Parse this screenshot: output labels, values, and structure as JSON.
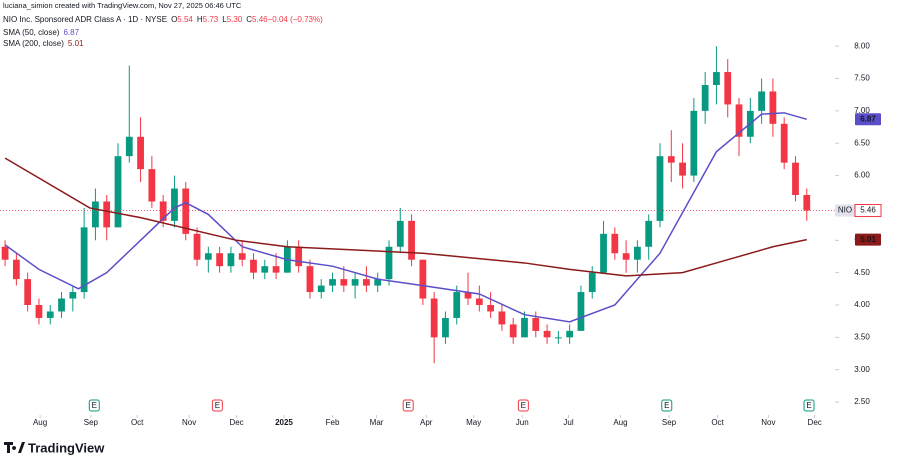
{
  "header": {
    "credit": "luciana_simion created with TradingView.com, Nov 27, 2025 06:46 UTC",
    "symbol": "NIO Inc. Sponsored ADR Class A · 1D · NYSE",
    "ohlc": [
      {
        "key": "O",
        "text": "5.54"
      },
      {
        "key": "H",
        "text": "5.73"
      },
      {
        "key": "L",
        "text": "5.30"
      },
      {
        "key": "C",
        "text": "5.46"
      },
      {
        "key": "",
        "text": "−0.04 (−0.73%)"
      }
    ],
    "ticker": "NIO"
  },
  "footer": {
    "brand": "TradingView"
  },
  "chart_data": {
    "type": "candlestick",
    "up_color": "#089981",
    "down_color": "#f23645",
    "open": [
      4.9,
      4.7,
      4.4,
      4.0,
      3.8,
      3.9,
      4.1,
      4.2,
      5.2,
      5.6,
      5.2,
      6.3,
      6.6,
      6.1,
      5.6,
      5.3,
      5.8,
      5.1,
      4.7,
      4.8,
      4.6,
      4.8,
      4.7,
      4.5,
      4.6,
      4.5,
      4.9,
      4.6,
      4.2,
      4.3,
      4.4,
      4.3,
      4.4,
      4.3,
      4.4,
      4.9,
      5.3,
      4.7,
      4.1,
      3.5,
      3.8,
      4.2,
      4.1,
      4.0,
      3.9,
      3.7,
      3.5,
      3.8,
      3.6,
      3.5,
      3.5,
      3.6,
      4.2,
      4.5,
      5.1,
      4.8,
      4.7,
      4.9,
      5.3,
      6.3,
      6.2,
      6.0,
      7.0,
      7.4,
      7.6,
      7.1,
      6.6,
      7.0,
      7.3,
      6.8,
      6.2,
      5.7
    ],
    "high": [
      5.0,
      4.8,
      4.5,
      4.1,
      4.0,
      4.2,
      4.3,
      5.5,
      5.8,
      5.7,
      6.5,
      7.7,
      6.9,
      6.3,
      5.7,
      6.0,
      5.9,
      5.2,
      4.9,
      4.9,
      4.9,
      5.0,
      4.8,
      4.7,
      4.8,
      5.0,
      5.0,
      4.7,
      4.4,
      4.5,
      4.6,
      4.5,
      4.6,
      4.5,
      5.0,
      5.5,
      5.4,
      4.7,
      4.2,
      3.9,
      4.3,
      4.5,
      4.3,
      4.2,
      4.0,
      3.8,
      3.9,
      3.9,
      3.7,
      3.6,
      3.7,
      4.3,
      4.6,
      5.3,
      5.2,
      5.0,
      5.0,
      5.4,
      6.5,
      6.7,
      6.5,
      7.2,
      7.6,
      8.0,
      7.8,
      7.2,
      7.2,
      7.5,
      7.5,
      6.9,
      6.3,
      5.8
    ],
    "low": [
      4.6,
      4.3,
      3.9,
      3.7,
      3.7,
      3.8,
      3.9,
      4.1,
      5.0,
      5.0,
      5.2,
      6.2,
      5.9,
      5.5,
      5.2,
      5.2,
      5.0,
      4.6,
      4.5,
      4.5,
      4.5,
      4.6,
      4.4,
      4.4,
      4.4,
      4.5,
      4.5,
      4.1,
      4.1,
      4.2,
      4.2,
      4.1,
      4.2,
      4.2,
      4.3,
      4.8,
      4.6,
      4.0,
      3.1,
      3.4,
      3.7,
      4.0,
      3.9,
      3.8,
      3.6,
      3.4,
      3.5,
      3.5,
      3.4,
      3.4,
      3.4,
      3.6,
      4.1,
      4.5,
      4.7,
      4.5,
      4.5,
      4.7,
      5.2,
      5.9,
      5.8,
      5.9,
      6.8,
      7.1,
      6.9,
      6.3,
      6.5,
      6.8,
      6.6,
      6.1,
      5.6,
      5.3
    ],
    "close": [
      4.7,
      4.4,
      4.0,
      3.8,
      3.9,
      4.1,
      4.2,
      5.2,
      5.6,
      5.2,
      6.3,
      6.6,
      6.1,
      5.6,
      5.3,
      5.8,
      5.1,
      4.7,
      4.8,
      4.6,
      4.8,
      4.7,
      4.5,
      4.6,
      4.5,
      4.9,
      4.6,
      4.2,
      4.3,
      4.4,
      4.3,
      4.4,
      4.3,
      4.4,
      4.9,
      5.3,
      4.7,
      4.1,
      3.5,
      3.8,
      4.2,
      4.1,
      4.0,
      3.9,
      3.7,
      3.5,
      3.8,
      3.6,
      3.5,
      3.5,
      3.6,
      4.2,
      4.5,
      5.1,
      4.8,
      4.7,
      4.9,
      5.3,
      6.3,
      6.2,
      6.0,
      7.0,
      7.4,
      7.6,
      7.1,
      6.6,
      7.0,
      7.3,
      6.8,
      6.2,
      5.7,
      5.46
    ],
    "series": [
      {
        "name": "SMA (50, close)",
        "color": "#5b4fc9",
        "x": [
          0,
          3,
          6.5,
          9,
          12,
          15,
          16,
          18,
          21,
          25,
          29,
          33,
          37,
          42,
          46,
          50,
          54,
          58,
          63,
          67,
          69,
          71
        ],
        "values": [
          4.93,
          4.55,
          4.25,
          4.5,
          5.0,
          5.5,
          5.58,
          5.4,
          4.9,
          4.7,
          4.6,
          4.4,
          4.3,
          4.17,
          3.85,
          3.74,
          4.0,
          4.8,
          6.37,
          6.95,
          6.97,
          6.87
        ]
      },
      {
        "name": "SMA (200, close)",
        "color": "#8b1a1a",
        "x": [
          0,
          7.5,
          12,
          20.5,
          25,
          37,
          46,
          50,
          55,
          60,
          64,
          68,
          71
        ],
        "values": [
          6.27,
          5.5,
          5.35,
          5.0,
          4.9,
          4.8,
          4.65,
          4.55,
          4.45,
          4.5,
          4.7,
          4.9,
          5.01
        ]
      }
    ],
    "ylim": [
      2.3,
      8.25
    ],
    "yticks": [
      {
        "value": 2.5,
        "label": "2.50"
      },
      {
        "value": 3,
        "label": "3.00"
      },
      {
        "value": 3.5,
        "label": "3.50"
      },
      {
        "value": 4,
        "label": "4.00"
      },
      {
        "value": 4.5,
        "label": "4.50"
      },
      {
        "value": 5,
        "label": "5.00"
      },
      {
        "value": 5.5,
        "label": "5.50"
      },
      {
        "value": 6,
        "label": "6.00"
      },
      {
        "value": 6.5,
        "label": "6.50"
      },
      {
        "value": 7,
        "label": "7.00"
      },
      {
        "value": 7.5,
        "label": "7.50"
      },
      {
        "value": 8,
        "label": "8.00"
      }
    ],
    "xlim": [
      -0.45,
      73.5
    ],
    "xticks": [
      {
        "value": 3.1,
        "label": "Aug"
      },
      {
        "value": 7.6,
        "label": "Sep"
      },
      {
        "value": 11.7,
        "label": "Oct"
      },
      {
        "value": 16.3,
        "label": "Nov"
      },
      {
        "value": 20.5,
        "label": "Dec"
      },
      {
        "value": 24.7,
        "label": "2025"
      },
      {
        "value": 29.0,
        "label": "Feb"
      },
      {
        "value": 32.9,
        "label": "Mar"
      },
      {
        "value": 37.3,
        "label": "Apr"
      },
      {
        "value": 41.5,
        "label": "May"
      },
      {
        "value": 45.8,
        "label": "Jun"
      },
      {
        "value": 49.9,
        "label": "Jul"
      },
      {
        "value": 54.5,
        "label": "Aug"
      },
      {
        "value": 58.8,
        "label": "Sep"
      },
      {
        "value": 63.1,
        "label": "Oct"
      },
      {
        "value": 67.6,
        "label": "Nov"
      },
      {
        "value": 71.7,
        "label": "Dec"
      }
    ],
    "earnings": [
      {
        "x": 7.9,
        "label": "E"
      },
      {
        "x": 18.8,
        "label": "E"
      },
      {
        "x": 35.7,
        "label": "E"
      },
      {
        "x": 45.9,
        "label": "E"
      },
      {
        "x": 58.6,
        "label": "E"
      },
      {
        "x": 71.2,
        "label": "E"
      }
    ]
  }
}
